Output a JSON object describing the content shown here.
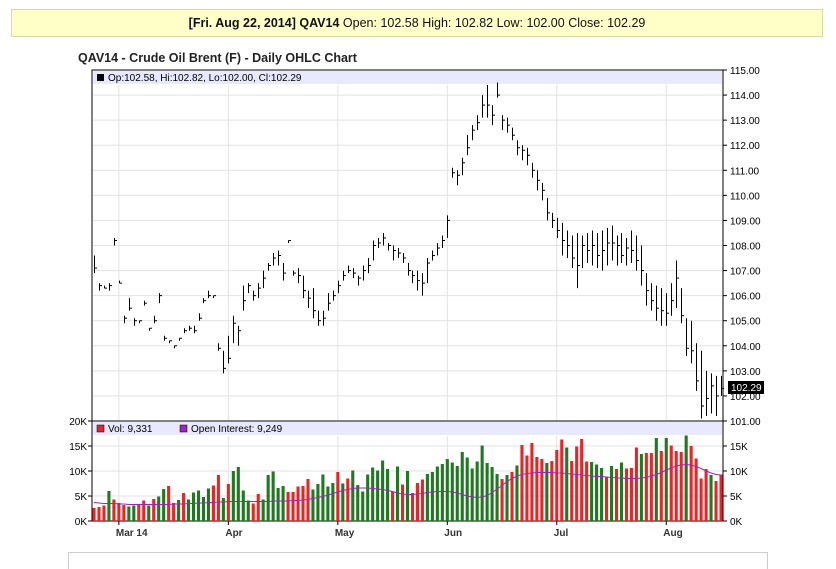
{
  "info_bar": {
    "date": "[Fri. Aug 22, 2014]",
    "symbol": "QAV14",
    "open_label": "Open:",
    "open": "102.58",
    "high_label": "High:",
    "high": "102.82",
    "low_label": "Low:",
    "low": "102.00",
    "close_label": "Close:",
    "close": "102.29"
  },
  "chart_title": "QAV14 - Crude Oil Brent (F) - Daily OHLC Chart",
  "price_legend": "Op:102.58, Hi:102.82, Lo:102.00, Cl:102.29",
  "last_price_label": "102.29",
  "volume_legend": {
    "vol": "Vol: 9,331",
    "oi": "Open Interest: 9,249"
  },
  "colors": {
    "up": "#1e7a1e",
    "down": "#ee2222",
    "oi_line": "#a020c0",
    "header_band": "#e8e8ff",
    "vol_legend_swatch": "#ee2222",
    "oi_legend_swatch": "#a020c0"
  },
  "chart_data": [
    {
      "type": "ohlc",
      "title": "QAV14 - Crude Oil Brent (F) - Daily OHLC Chart",
      "ylim": [
        101.0,
        115.0
      ],
      "yticks": [
        "101.00",
        "102.00",
        "103.00",
        "104.00",
        "105.00",
        "106.00",
        "107.00",
        "108.00",
        "109.00",
        "110.00",
        "111.00",
        "112.00",
        "113.00",
        "114.00",
        "115.00"
      ],
      "bars": [
        [
          107.6,
          106.9,
          107.1
        ],
        [
          106.5,
          106.2,
          106.4
        ],
        [
          106.4,
          106.3,
          106.3
        ],
        [
          106.5,
          106.2,
          106.4
        ],
        [
          108.3,
          108.0,
          108.2
        ],
        [
          106.6,
          106.5,
          106.5
        ],
        [
          105.2,
          104.9,
          105.1
        ],
        [
          105.9,
          105.4,
          105.5
        ],
        [
          105.1,
          104.8,
          105.0
        ],
        [
          105.0,
          104.9,
          105.0
        ],
        [
          105.8,
          105.6,
          105.7
        ],
        [
          104.7,
          104.6,
          104.7
        ],
        [
          105.2,
          104.9,
          105.0
        ],
        [
          106.1,
          105.7,
          106.0
        ],
        [
          104.4,
          104.2,
          104.3
        ],
        [
          104.2,
          104.1,
          104.2
        ],
        [
          104.0,
          103.9,
          104.0
        ],
        [
          104.3,
          104.2,
          104.3
        ],
        [
          104.7,
          104.5,
          104.6
        ],
        [
          104.8,
          104.6,
          104.7
        ],
        [
          104.8,
          104.5,
          104.6
        ],
        [
          105.3,
          105.0,
          105.1
        ],
        [
          105.9,
          105.7,
          105.8
        ],
        [
          106.2,
          105.9,
          106.0
        ],
        [
          106.0,
          105.9,
          106.0
        ],
        [
          104.1,
          103.8,
          103.9
        ],
        [
          103.8,
          102.9,
          103.1
        ],
        [
          104.4,
          103.3,
          103.5
        ],
        [
          105.2,
          104.1,
          104.9
        ],
        [
          104.8,
          104.0,
          104.6
        ],
        [
          106.4,
          105.4,
          105.8
        ],
        [
          106.5,
          106.1,
          106.4
        ],
        [
          106.2,
          105.8,
          106.0
        ],
        [
          106.5,
          105.9,
          106.3
        ],
        [
          107.0,
          106.3,
          106.7
        ],
        [
          107.3,
          107.0,
          107.2
        ],
        [
          107.7,
          107.2,
          107.5
        ],
        [
          107.8,
          107.2,
          107.6
        ],
        [
          107.3,
          106.6,
          106.9
        ],
        [
          108.2,
          108.1,
          108.2
        ],
        [
          107.0,
          106.8,
          106.9
        ],
        [
          107.1,
          106.5,
          106.8
        ],
        [
          106.8,
          105.9,
          106.2
        ],
        [
          106.2,
          105.5,
          105.9
        ],
        [
          106.3,
          105.1,
          105.4
        ],
        [
          105.4,
          104.8,
          105.0
        ],
        [
          105.4,
          104.8,
          105.1
        ],
        [
          106.1,
          105.4,
          105.7
        ],
        [
          106.2,
          105.8,
          106.0
        ],
        [
          106.6,
          106.1,
          106.4
        ],
        [
          107.0,
          106.6,
          106.8
        ],
        [
          107.2,
          106.9,
          107.0
        ],
        [
          107.1,
          106.7,
          106.9
        ],
        [
          106.8,
          106.4,
          106.7
        ],
        [
          107.2,
          106.6,
          107.0
        ],
        [
          107.5,
          106.9,
          107.2
        ],
        [
          108.2,
          107.4,
          108.0
        ],
        [
          108.3,
          107.9,
          108.1
        ],
        [
          108.5,
          108.0,
          108.3
        ],
        [
          108.1,
          107.8,
          108.0
        ],
        [
          108.0,
          107.4,
          107.8
        ],
        [
          107.9,
          107.5,
          107.7
        ],
        [
          107.7,
          107.3,
          107.5
        ],
        [
          107.3,
          106.8,
          107.0
        ],
        [
          107.0,
          106.5,
          106.8
        ],
        [
          107.0,
          106.2,
          106.6
        ],
        [
          106.9,
          106.0,
          106.5
        ],
        [
          107.5,
          106.5,
          107.3
        ],
        [
          107.8,
          107.4,
          107.6
        ],
        [
          108.1,
          107.6,
          107.9
        ],
        [
          108.4,
          107.9,
          108.2
        ],
        [
          109.2,
          108.3,
          109.0
        ],
        [
          111.1,
          110.7,
          110.9
        ],
        [
          111.0,
          110.4,
          110.8
        ],
        [
          111.5,
          110.8,
          111.3
        ],
        [
          112.4,
          111.6,
          111.9
        ],
        [
          112.8,
          112.2,
          112.6
        ],
        [
          113.2,
          112.6,
          112.9
        ],
        [
          114.0,
          113.1,
          113.6
        ],
        [
          114.4,
          113.1,
          113.6
        ],
        [
          113.6,
          112.8,
          113.2
        ],
        [
          114.5,
          113.9,
          114.0
        ],
        [
          113.2,
          112.6,
          113.0
        ],
        [
          113.1,
          112.5,
          112.8
        ],
        [
          112.7,
          112.2,
          112.4
        ],
        [
          112.2,
          111.6,
          111.9
        ],
        [
          112.0,
          111.4,
          111.8
        ],
        [
          111.9,
          111.2,
          111.6
        ],
        [
          111.3,
          110.7,
          111.0
        ],
        [
          111.0,
          110.2,
          110.6
        ],
        [
          110.5,
          109.8,
          110.2
        ],
        [
          109.9,
          109.0,
          109.3
        ],
        [
          109.3,
          108.7,
          109.0
        ],
        [
          109.1,
          108.3,
          108.6
        ],
        [
          108.9,
          107.6,
          108.2
        ],
        [
          108.6,
          107.5,
          108.0
        ],
        [
          108.4,
          107.1,
          107.5
        ],
        [
          108.5,
          106.3,
          107.2
        ],
        [
          108.4,
          107.1,
          108.0
        ],
        [
          108.5,
          107.3,
          107.8
        ],
        [
          108.6,
          107.2,
          108.0
        ],
        [
          108.5,
          107.1,
          107.6
        ],
        [
          108.6,
          107.0,
          107.8
        ],
        [
          108.7,
          107.2,
          108.1
        ],
        [
          108.8,
          107.4,
          108.1
        ],
        [
          108.4,
          107.2,
          108.0
        ],
        [
          108.5,
          107.3,
          107.6
        ],
        [
          108.3,
          107.2,
          107.9
        ],
        [
          108.6,
          107.3,
          107.8
        ],
        [
          108.4,
          107.0,
          107.4
        ],
        [
          108.0,
          106.4,
          107.0
        ],
        [
          106.9,
          105.6,
          106.2
        ],
        [
          106.5,
          105.4,
          105.8
        ],
        [
          106.4,
          105.0,
          105.5
        ],
        [
          106.3,
          104.8,
          105.4
        ],
        [
          106.1,
          104.8,
          105.3
        ],
        [
          106.5,
          105.2,
          105.8
        ],
        [
          107.4,
          105.5,
          106.7
        ],
        [
          106.3,
          104.9,
          105.2
        ],
        [
          105.1,
          103.6,
          103.9
        ],
        [
          105.0,
          103.3,
          103.8
        ],
        [
          104.1,
          102.2,
          102.6
        ],
        [
          103.8,
          101.1,
          101.6
        ],
        [
          103.0,
          101.2,
          101.9
        ],
        [
          102.9,
          101.3,
          102.4
        ],
        [
          102.8,
          101.2,
          102.0
        ],
        [
          102.8,
          102.0,
          102.3
        ]
      ],
      "volume_axis": {
        "left": [
          "0K",
          "5K",
          "10K",
          "15K",
          "20K"
        ],
        "right": [
          "0K",
          "5K",
          "10K",
          "15K"
        ]
      },
      "x_labels": [
        "Mar 14",
        "Apr",
        "May",
        "Jun",
        "Jul",
        "Aug"
      ],
      "volume": [
        [
          2.6,
          "d"
        ],
        [
          2.8,
          "d"
        ],
        [
          3.1,
          "d"
        ],
        [
          6.0,
          "u"
        ],
        [
          4.3,
          "d"
        ],
        [
          3.6,
          "d"
        ],
        [
          3.2,
          "d"
        ],
        [
          2.9,
          "u"
        ],
        [
          3.1,
          "u"
        ],
        [
          3.2,
          "d"
        ],
        [
          4.1,
          "d"
        ],
        [
          3.1,
          "u"
        ],
        [
          4.4,
          "d"
        ],
        [
          4.9,
          "u"
        ],
        [
          6.4,
          "u"
        ],
        [
          7.0,
          "d"
        ],
        [
          3.6,
          "d"
        ],
        [
          4.2,
          "u"
        ],
        [
          5.6,
          "d"
        ],
        [
          4.3,
          "u"
        ],
        [
          5.7,
          "u"
        ],
        [
          6.1,
          "u"
        ],
        [
          4.8,
          "u"
        ],
        [
          6.5,
          "u"
        ],
        [
          7.1,
          "d"
        ],
        [
          9.2,
          "d"
        ],
        [
          4.6,
          "u"
        ],
        [
          7.4,
          "d"
        ],
        [
          10.0,
          "u"
        ],
        [
          10.8,
          "u"
        ],
        [
          6.1,
          "u"
        ],
        [
          4.1,
          "u"
        ],
        [
          3.5,
          "d"
        ],
        [
          5.4,
          "d"
        ],
        [
          4.3,
          "u"
        ],
        [
          9.2,
          "u"
        ],
        [
          9.9,
          "u"
        ],
        [
          6.6,
          "u"
        ],
        [
          7.0,
          "u"
        ],
        [
          5.8,
          "d"
        ],
        [
          5.8,
          "d"
        ],
        [
          6.9,
          "d"
        ],
        [
          7.0,
          "d"
        ],
        [
          8.4,
          "d"
        ],
        [
          6.3,
          "u"
        ],
        [
          7.4,
          "u"
        ],
        [
          9.3,
          "u"
        ],
        [
          6.9,
          "u"
        ],
        [
          7.6,
          "u"
        ],
        [
          9.8,
          "d"
        ],
        [
          7.5,
          "u"
        ],
        [
          8.5,
          "d"
        ],
        [
          10.1,
          "u"
        ],
        [
          7.2,
          "u"
        ],
        [
          5.9,
          "u"
        ],
        [
          9.3,
          "u"
        ],
        [
          10.7,
          "u"
        ],
        [
          10.1,
          "u"
        ],
        [
          12.1,
          "u"
        ],
        [
          10.4,
          "u"
        ],
        [
          5.9,
          "d"
        ],
        [
          10.9,
          "u"
        ],
        [
          7.3,
          "d"
        ],
        [
          10.0,
          "u"
        ],
        [
          5.6,
          "d"
        ],
        [
          7.6,
          "d"
        ],
        [
          8.3,
          "d"
        ],
        [
          9.4,
          "u"
        ],
        [
          9.8,
          "u"
        ],
        [
          10.9,
          "u"
        ],
        [
          11.4,
          "u"
        ],
        [
          12.4,
          "u"
        ],
        [
          11.7,
          "u"
        ],
        [
          11.0,
          "u"
        ],
        [
          13.8,
          "u"
        ],
        [
          12.7,
          "u"
        ],
        [
          10.5,
          "u"
        ],
        [
          11.9,
          "u"
        ],
        [
          15.1,
          "u"
        ],
        [
          11.6,
          "u"
        ],
        [
          10.8,
          "u"
        ],
        [
          9.4,
          "u"
        ],
        [
          8.4,
          "d"
        ],
        [
          9.2,
          "u"
        ],
        [
          9.8,
          "d"
        ],
        [
          11.1,
          "u"
        ],
        [
          15.2,
          "d"
        ],
        [
          13.1,
          "d"
        ],
        [
          15.6,
          "d"
        ],
        [
          12.8,
          "d"
        ],
        [
          12.4,
          "d"
        ],
        [
          11.6,
          "u"
        ],
        [
          12.0,
          "d"
        ],
        [
          14.2,
          "d"
        ],
        [
          16.3,
          "d"
        ],
        [
          14.7,
          "u"
        ],
        [
          12.0,
          "d"
        ],
        [
          14.9,
          "d"
        ],
        [
          16.4,
          "d"
        ],
        [
          11.9,
          "d"
        ],
        [
          11.8,
          "u"
        ],
        [
          11.3,
          "u"
        ],
        [
          10.6,
          "u"
        ],
        [
          8.7,
          "d"
        ],
        [
          11.0,
          "u"
        ],
        [
          10.4,
          "d"
        ],
        [
          11.7,
          "u"
        ],
        [
          10.5,
          "d"
        ],
        [
          10.6,
          "d"
        ],
        [
          14.7,
          "d"
        ],
        [
          13.4,
          "u"
        ],
        [
          13.6,
          "d"
        ],
        [
          13.6,
          "d"
        ],
        [
          16.6,
          "u"
        ],
        [
          14.0,
          "d"
        ],
        [
          16.6,
          "u"
        ],
        [
          15.1,
          "d"
        ],
        [
          14.0,
          "d"
        ],
        [
          13.8,
          "d"
        ],
        [
          17.1,
          "u"
        ],
        [
          15.0,
          "d"
        ],
        [
          12.5,
          "d"
        ],
        [
          8.5,
          "d"
        ],
        [
          10.4,
          "d"
        ],
        [
          9.2,
          "u"
        ],
        [
          8.0,
          "d"
        ],
        [
          9.3,
          "d"
        ]
      ],
      "open_interest": [
        3.7,
        3.6,
        3.5,
        3.5,
        3.5,
        3.4,
        3.4,
        3.3,
        3.3,
        3.3,
        3.3,
        3.3,
        3.3,
        3.3,
        3.3,
        3.3,
        3.4,
        3.4,
        3.4,
        3.5,
        3.5,
        3.6,
        3.6,
        3.7,
        3.7,
        3.8,
        3.8,
        3.9,
        3.9,
        3.9,
        3.9,
        3.9,
        3.9,
        3.9,
        3.9,
        3.9,
        4.0,
        4.0,
        4.0,
        4.0,
        4.1,
        4.1,
        4.2,
        4.3,
        4.5,
        4.7,
        4.9,
        5.2,
        5.5,
        5.8,
        6.1,
        6.3,
        6.5,
        6.6,
        6.6,
        6.6,
        6.5,
        6.4,
        6.3,
        6.1,
        5.9,
        5.6,
        5.4,
        5.3,
        5.3,
        5.4,
        5.5,
        5.7,
        5.8,
        5.9,
        5.9,
        5.9,
        5.8,
        5.6,
        5.3,
        5.0,
        4.8,
        4.7,
        4.8,
        5.1,
        5.7,
        6.4,
        7.1,
        7.9,
        8.5,
        9.0,
        9.3,
        9.5,
        9.6,
        9.7,
        9.7,
        9.7,
        9.7,
        9.6,
        9.6,
        9.5,
        9.4,
        9.3,
        9.2,
        9.1,
        9.0,
        8.9,
        8.9,
        8.8,
        8.7,
        8.6,
        8.6,
        8.5,
        8.5,
        8.5,
        8.6,
        8.7,
        9.0,
        9.3,
        9.7,
        10.2,
        10.6,
        11.0,
        11.2,
        11.3,
        11.2,
        10.9,
        10.5,
        10.0,
        9.6,
        9.3,
        9.2
      ]
    }
  ]
}
